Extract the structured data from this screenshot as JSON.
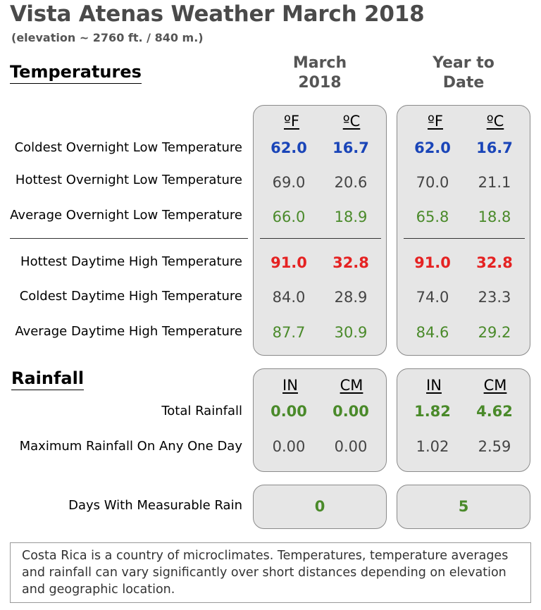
{
  "title": "Vista Atenas Weather March 2018",
  "subtitle": "(elevation ~ 2760 ft. / 840  m.)",
  "sections": {
    "temperatures": "Temperatures",
    "rainfall": "Rainfall"
  },
  "columns": {
    "month": [
      "March",
      "2018"
    ],
    "ytd": [
      "Year to",
      "Date"
    ]
  },
  "temp_units": [
    "ºF",
    "ºC"
  ],
  "rain_units": [
    "IN",
    "CM"
  ],
  "temperature_rows": [
    {
      "label": "Coldest Overnight Low Temperature",
      "month": [
        "62.0",
        "16.7"
      ],
      "ytd": [
        "62.0",
        "16.7"
      ],
      "style": "blue"
    },
    {
      "label": "Hottest Overnight Low Temperature",
      "month": [
        "69.0",
        "20.6"
      ],
      "ytd": [
        "70.0",
        "21.1"
      ],
      "style": "gray"
    },
    {
      "label": "Average Overnight Low Temperature",
      "month": [
        "66.0",
        "18.9"
      ],
      "ytd": [
        "65.8",
        "18.8"
      ],
      "style": "green"
    },
    {
      "label": "Hottest Daytime High Temperature",
      "month": [
        "91.0",
        "32.8"
      ],
      "ytd": [
        "91.0",
        "32.8"
      ],
      "style": "red"
    },
    {
      "label": "Coldest Daytime High Temperature",
      "month": [
        "84.0",
        "28.9"
      ],
      "ytd": [
        "74.0",
        "23.3"
      ],
      "style": "gray"
    },
    {
      "label": "Average Daytime High Temperature",
      "month": [
        "87.7",
        "30.9"
      ],
      "ytd": [
        "84.6",
        "29.2"
      ],
      "style": "green"
    }
  ],
  "rain_rows": [
    {
      "label": "Total Rainfall",
      "month": [
        "0.00",
        "0.00"
      ],
      "ytd": [
        "1.82",
        "4.62"
      ],
      "style": "greenb"
    },
    {
      "label": "Maximum Rainfall On Any One Day",
      "month": [
        "0.00",
        "0.00"
      ],
      "ytd": [
        "1.02",
        "2.59"
      ],
      "style": "gray"
    }
  ],
  "rain_days": {
    "label": "Days With Measurable Rain",
    "month": "0",
    "ytd": "5"
  },
  "note": "Costa Rica is a country of microclimates. Temperatures, temperature averages and rainfall can vary significantly over short distances depending on elevation and geographic location."
}
